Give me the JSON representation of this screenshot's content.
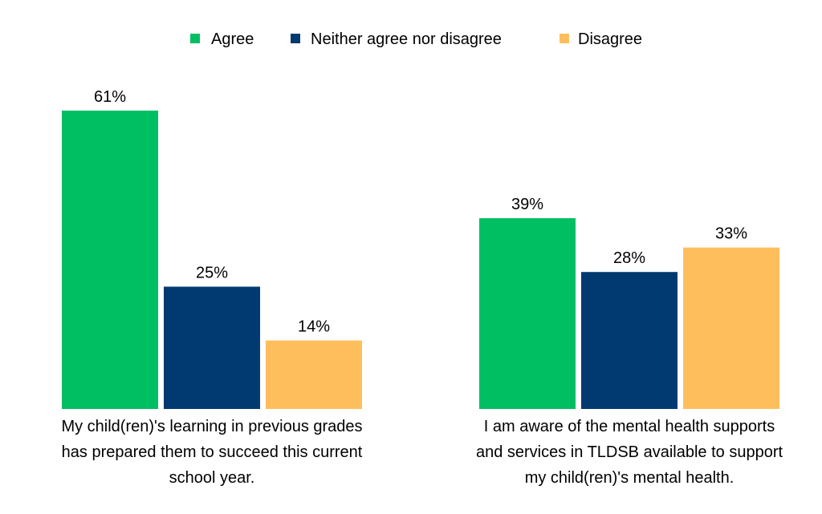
{
  "chart_data": {
    "type": "bar",
    "title": "",
    "xlabel": "",
    "ylabel": "",
    "ylim": [
      0,
      70
    ],
    "grid": false,
    "legend_position": "top",
    "value_format": "percent",
    "categories": [
      [
        "My child(ren)'s learning in previous grades",
        "has prepared them to succeed this current",
        "school year."
      ],
      [
        "I am aware of the mental health supports",
        "and services in TLDSB available to support",
        "my child(ren)'s mental health."
      ]
    ],
    "series": [
      {
        "name": "Agree",
        "color": "#00BF63",
        "values": [
          61,
          39
        ]
      },
      {
        "name": "Neither agree nor disagree",
        "color": "#003A70",
        "values": [
          25,
          28
        ]
      },
      {
        "name": "Disagree",
        "color": "#FFBE5C",
        "values": [
          14,
          33
        ]
      }
    ]
  }
}
